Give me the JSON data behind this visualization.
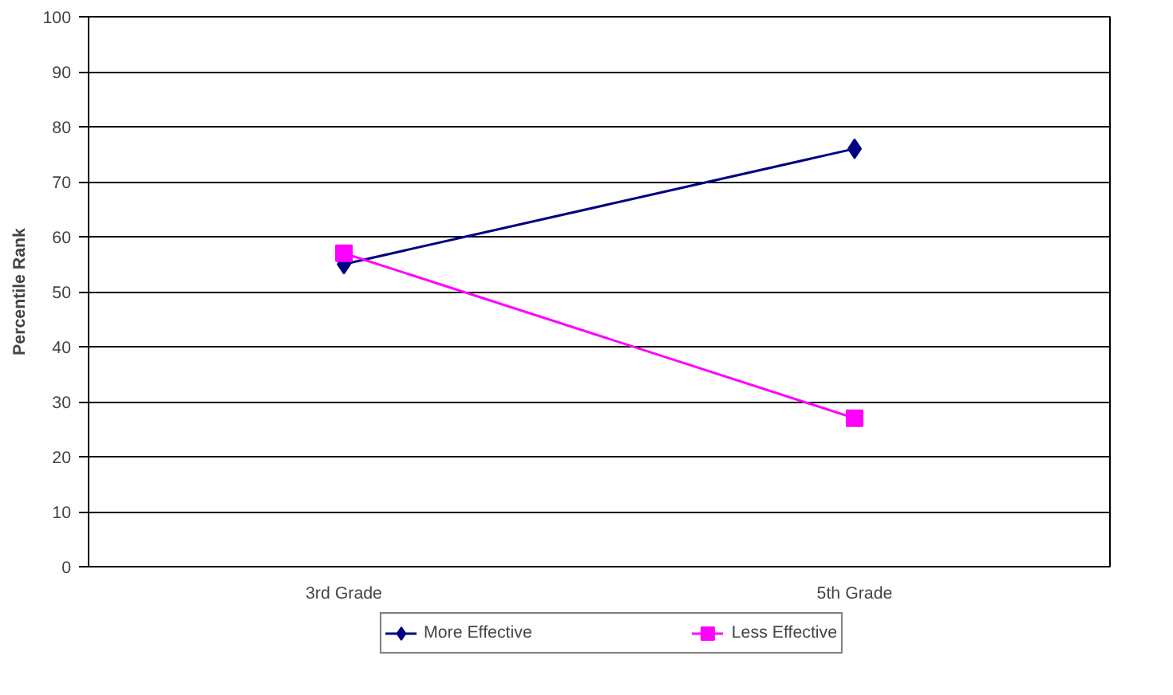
{
  "chart_data": {
    "type": "line",
    "ylabel": "Percentile Rank",
    "categories": [
      "3rd Grade",
      "5th Grade"
    ],
    "series": [
      {
        "name": "More Effective",
        "color": "#000080",
        "values": [
          55,
          76
        ],
        "marker": "diamond"
      },
      {
        "name": "Less Effective",
        "color": "#ff00ff",
        "values": [
          57,
          27
        ],
        "marker": "square"
      }
    ],
    "ylim": [
      0,
      100
    ],
    "yticks": [
      0,
      10,
      20,
      30,
      40,
      50,
      60,
      70,
      80,
      90,
      100
    ],
    "grid": "y",
    "legend": "bottom"
  }
}
